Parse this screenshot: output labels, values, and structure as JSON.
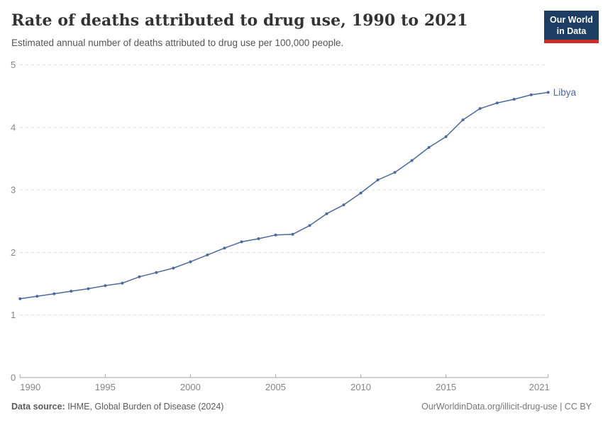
{
  "header": {
    "title": "Rate of deaths attributed to drug use, 1990 to 2021",
    "subtitle": "Estimated annual number of deaths attributed to drug use per 100,000 people.",
    "logo": {
      "line1": "Our World",
      "line2": "in Data",
      "bg_color": "#1d3d63",
      "accent_color": "#cf2e27"
    }
  },
  "chart_data": {
    "type": "line",
    "title": "Rate of deaths attributed to drug use, 1990 to 2021",
    "xlabel": "",
    "ylabel": "",
    "xlim": [
      1990,
      2021
    ],
    "ylim": [
      0,
      5
    ],
    "x_ticks": [
      1990,
      1995,
      2000,
      2005,
      2010,
      2015,
      2021
    ],
    "y_ticks": [
      0,
      1,
      2,
      3,
      4,
      5
    ],
    "grid": "horizontal-dashed",
    "legend_position": "end-of-line-label",
    "series": [
      {
        "name": "Libya",
        "color": "#4C6A9C",
        "x": [
          1990,
          1991,
          1992,
          1993,
          1994,
          1995,
          1996,
          1997,
          1998,
          1999,
          2000,
          2001,
          2002,
          2003,
          2004,
          2005,
          2006,
          2007,
          2008,
          2009,
          2010,
          2011,
          2012,
          2013,
          2014,
          2015,
          2016,
          2017,
          2018,
          2019,
          2020,
          2021
        ],
        "values": [
          1.26,
          1.3,
          1.34,
          1.38,
          1.42,
          1.47,
          1.51,
          1.61,
          1.68,
          1.75,
          1.85,
          1.96,
          2.07,
          2.17,
          2.22,
          2.28,
          2.29,
          2.43,
          2.62,
          2.76,
          2.95,
          3.16,
          3.28,
          3.47,
          3.68,
          3.85,
          4.12,
          4.3,
          4.39,
          4.45,
          4.52,
          4.56
        ]
      }
    ],
    "colors": {
      "gridline": "#dedede",
      "axis_line": "#a5a5a5",
      "tick_label": "#858585"
    }
  },
  "footer": {
    "source_label": "Data source:",
    "source_rest": " IHME, Global Burden of Disease (2024)",
    "credit": "OurWorldinData.org/illicit-drug-use | CC BY"
  }
}
